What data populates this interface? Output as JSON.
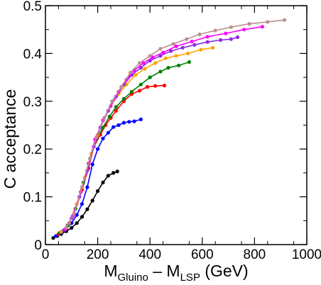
{
  "chart_data": {
    "type": "line",
    "title": "",
    "xlabel": {
      "main_1": "M",
      "sub_1": "Gluino",
      "dash": " – ",
      "main_2": "M",
      "sub_2": "LSP",
      "unit": " (GeV)"
    },
    "ylabel": "C  acceptance",
    "xlim": [
      0,
      1000
    ],
    "ylim": [
      0,
      0.5
    ],
    "xticks": [
      0,
      200,
      400,
      600,
      800,
      1000
    ],
    "xtick_labels": [
      "0",
      "200",
      "400",
      "600",
      "800",
      "1000"
    ],
    "yticks": [
      0,
      0.1,
      0.2,
      0.3,
      0.4,
      0.5
    ],
    "ytick_labels": [
      "0",
      "0.1",
      "0.2",
      "0.3",
      "0.4",
      "0.5"
    ],
    "grid": false,
    "legend": "none",
    "series": [
      {
        "color": "#000000",
        "points": [
          [
            30,
            0.014
          ],
          [
            45,
            0.018
          ],
          [
            60,
            0.022
          ],
          [
            80,
            0.028
          ],
          [
            100,
            0.035
          ],
          [
            120,
            0.045
          ],
          [
            140,
            0.058
          ],
          [
            160,
            0.074
          ],
          [
            180,
            0.092
          ],
          [
            200,
            0.112
          ],
          [
            220,
            0.13
          ],
          [
            240,
            0.144
          ],
          [
            260,
            0.15
          ],
          [
            275,
            0.153
          ]
        ]
      },
      {
        "color": "#0000ff",
        "points": [
          [
            40,
            0.018
          ],
          [
            60,
            0.024
          ],
          [
            80,
            0.033
          ],
          [
            100,
            0.045
          ],
          [
            120,
            0.062
          ],
          [
            140,
            0.085
          ],
          [
            160,
            0.12
          ],
          [
            180,
            0.168
          ],
          [
            200,
            0.2
          ],
          [
            220,
            0.222
          ],
          [
            240,
            0.234
          ],
          [
            260,
            0.246
          ],
          [
            280,
            0.25
          ],
          [
            300,
            0.255
          ],
          [
            320,
            0.257
          ],
          [
            340,
            0.258
          ],
          [
            365,
            0.262
          ]
        ]
      },
      {
        "color": "#ff0000",
        "points": [
          [
            50,
            0.022
          ],
          [
            80,
            0.035
          ],
          [
            110,
            0.065
          ],
          [
            140,
            0.115
          ],
          [
            165,
            0.16
          ],
          [
            185,
            0.205
          ],
          [
            210,
            0.23
          ],
          [
            230,
            0.25
          ],
          [
            250,
            0.265
          ],
          [
            270,
            0.28
          ],
          [
            300,
            0.3
          ],
          [
            330,
            0.315
          ],
          [
            360,
            0.322
          ],
          [
            390,
            0.33
          ],
          [
            420,
            0.332
          ],
          [
            455,
            0.333
          ]
        ]
      },
      {
        "color": "#008000",
        "points": [
          [
            55,
            0.025
          ],
          [
            85,
            0.04
          ],
          [
            115,
            0.075
          ],
          [
            145,
            0.13
          ],
          [
            170,
            0.18
          ],
          [
            195,
            0.22
          ],
          [
            220,
            0.245
          ],
          [
            245,
            0.268
          ],
          [
            270,
            0.288
          ],
          [
            300,
            0.305
          ],
          [
            330,
            0.32
          ],
          [
            365,
            0.335
          ],
          [
            400,
            0.35
          ],
          [
            440,
            0.362
          ],
          [
            470,
            0.37
          ],
          [
            510,
            0.375
          ],
          [
            550,
            0.382
          ]
        ]
      },
      {
        "color": "#ffa500",
        "points": [
          [
            60,
            0.027
          ],
          [
            90,
            0.045
          ],
          [
            120,
            0.085
          ],
          [
            150,
            0.14
          ],
          [
            175,
            0.19
          ],
          [
            200,
            0.23
          ],
          [
            225,
            0.265
          ],
          [
            250,
            0.29
          ],
          [
            280,
            0.315
          ],
          [
            310,
            0.335
          ],
          [
            345,
            0.355
          ],
          [
            380,
            0.368
          ],
          [
            420,
            0.38
          ],
          [
            460,
            0.39
          ],
          [
            500,
            0.395
          ],
          [
            545,
            0.4
          ],
          [
            595,
            0.408
          ],
          [
            640,
            0.412
          ]
        ]
      },
      {
        "color": "#8a2be2",
        "points": [
          [
            70,
            0.03
          ],
          [
            100,
            0.055
          ],
          [
            130,
            0.1
          ],
          [
            160,
            0.155
          ],
          [
            185,
            0.205
          ],
          [
            210,
            0.245
          ],
          [
            240,
            0.28
          ],
          [
            270,
            0.31
          ],
          [
            300,
            0.335
          ],
          [
            330,
            0.355
          ],
          [
            365,
            0.37
          ],
          [
            400,
            0.385
          ],
          [
            440,
            0.395
          ],
          [
            480,
            0.405
          ],
          [
            525,
            0.412
          ],
          [
            570,
            0.418
          ],
          [
            620,
            0.424
          ],
          [
            670,
            0.428
          ],
          [
            710,
            0.43
          ],
          [
            735,
            0.434
          ]
        ]
      },
      {
        "color": "#ff00ff",
        "points": [
          [
            75,
            0.032
          ],
          [
            105,
            0.06
          ],
          [
            135,
            0.11
          ],
          [
            165,
            0.17
          ],
          [
            190,
            0.22
          ],
          [
            220,
            0.26
          ],
          [
            250,
            0.29
          ],
          [
            280,
            0.32
          ],
          [
            310,
            0.345
          ],
          [
            340,
            0.365
          ],
          [
            375,
            0.38
          ],
          [
            410,
            0.392
          ],
          [
            450,
            0.402
          ],
          [
            500,
            0.415
          ],
          [
            560,
            0.425
          ],
          [
            620,
            0.435
          ],
          [
            690,
            0.442
          ],
          [
            760,
            0.45
          ],
          [
            830,
            0.456
          ]
        ]
      },
      {
        "color": "#bc8f8f",
        "points": [
          [
            80,
            0.035
          ],
          [
            110,
            0.065
          ],
          [
            140,
            0.12
          ],
          [
            170,
            0.18
          ],
          [
            195,
            0.225
          ],
          [
            225,
            0.265
          ],
          [
            255,
            0.3
          ],
          [
            290,
            0.33
          ],
          [
            325,
            0.36
          ],
          [
            360,
            0.38
          ],
          [
            400,
            0.395
          ],
          [
            440,
            0.41
          ],
          [
            490,
            0.42
          ],
          [
            540,
            0.43
          ],
          [
            590,
            0.44
          ],
          [
            650,
            0.448
          ],
          [
            710,
            0.455
          ],
          [
            780,
            0.462
          ],
          [
            850,
            0.466
          ],
          [
            915,
            0.47
          ]
        ]
      }
    ]
  }
}
